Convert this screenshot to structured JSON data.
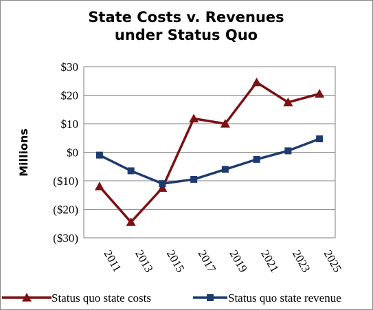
{
  "chart_data": {
    "type": "line",
    "title_line1": "State Costs v. Revenues",
    "title_line2": "under Status Quo",
    "ylabel": "Millions",
    "categories": [
      "2011",
      "2013",
      "2015",
      "2017",
      "2019",
      "2021",
      "2023",
      "2025"
    ],
    "y_ticks": [
      "$30",
      "$20",
      "$10",
      "$0",
      "($10)",
      "($20)",
      "($30)"
    ],
    "y_tick_values": [
      30,
      20,
      10,
      0,
      -10,
      -20,
      -30
    ],
    "ylim": [
      -30,
      30
    ],
    "grid": true,
    "legend_position": "bottom",
    "series": [
      {
        "name": "Status quo state costs",
        "marker": "triangle",
        "color": "#7b1113",
        "values": [
          -12,
          -24.5,
          -12.5,
          11.8,
          10,
          24.5,
          17.5,
          20.5
        ]
      },
      {
        "name": "Status quo state revenue",
        "marker": "square",
        "color": "#1f3b6e",
        "values": [
          -1,
          -6.5,
          -11,
          -9.5,
          -6,
          -2.5,
          0.5,
          4.7
        ]
      }
    ]
  }
}
